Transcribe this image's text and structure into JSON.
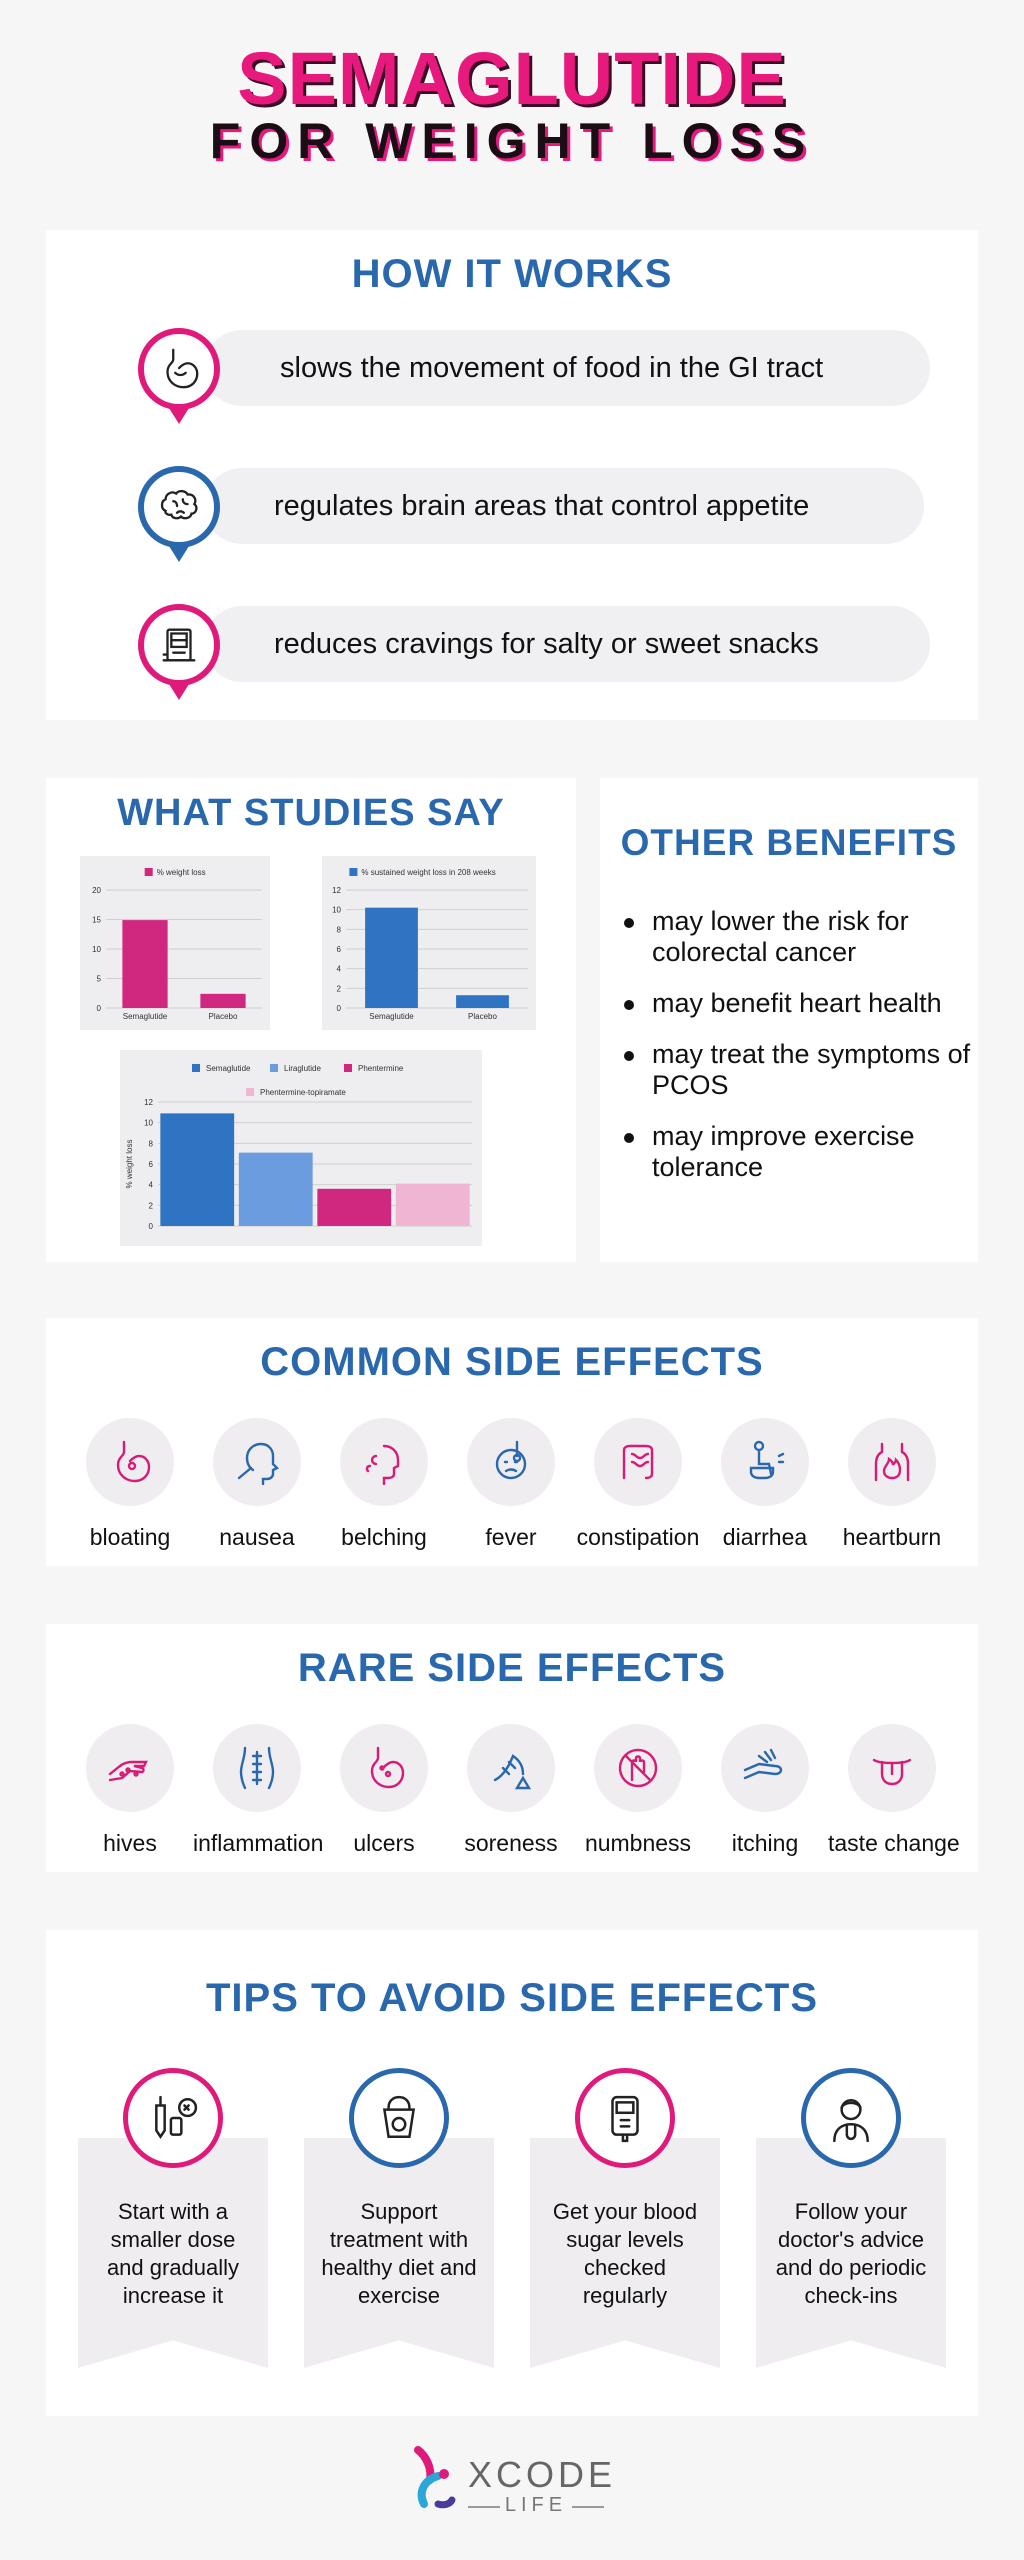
{
  "header": {
    "title": "SEMAGLUTIDE",
    "subtitle": "FOR WEIGHT LOSS"
  },
  "how_it_works": {
    "title": "HOW IT WORKS",
    "items": [
      {
        "text": "slows the movement of food in the GI tract",
        "icon": "stomach-icon",
        "color": "#e01a7b"
      },
      {
        "text": "regulates brain areas that control appetite",
        "icon": "brain-icon",
        "color": "#2a68ae"
      },
      {
        "text": "reduces cravings for salty or sweet snacks",
        "icon": "vending-machine-icon",
        "color": "#e01a7b"
      }
    ]
  },
  "studies": {
    "title": "WHAT STUDIES SAY"
  },
  "chart_data": [
    {
      "type": "bar",
      "categories": [
        "Semaglutide",
        "Placebo"
      ],
      "series": [
        {
          "name": "% weight loss",
          "values": [
            14.9,
            2.4
          ],
          "color": "#d0287e"
        }
      ],
      "ylim": [
        0,
        20
      ],
      "yticks": [
        "0",
        "5",
        "10",
        "15",
        "20"
      ],
      "legend": "top-center",
      "grid": true
    },
    {
      "type": "bar",
      "categories": [
        "Semaglutide",
        "Placebo"
      ],
      "series": [
        {
          "name": "% sustained weight loss in 208 weeks",
          "values": [
            10.2,
            1.3
          ],
          "color": "#2f74c3"
        }
      ],
      "ylim": [
        0,
        12
      ],
      "yticks": [
        "0",
        "2",
        "4",
        "6",
        "8",
        "10",
        "12"
      ],
      "legend": "top-center",
      "grid": true
    },
    {
      "type": "bar",
      "categories": [
        ""
      ],
      "series": [
        {
          "name": "Semaglutide",
          "values": [
            10.9
          ],
          "color": "#2f74c3"
        },
        {
          "name": "Liraglutide",
          "values": [
            7.1
          ],
          "color": "#6b9ce0"
        },
        {
          "name": "Phentermine",
          "values": [
            3.6
          ],
          "color": "#d0287e"
        },
        {
          "name": "Phentermine-topiramate",
          "values": [
            4.1
          ],
          "color": "#f0b5d2"
        }
      ],
      "ylabel": "% weight loss",
      "ylim": [
        0,
        12
      ],
      "yticks": [
        "0",
        "2",
        "4",
        "6",
        "8",
        "10",
        "12"
      ],
      "legend": "top-center",
      "grid": true
    }
  ],
  "other_benefits": {
    "title": "OTHER BENEFITS",
    "items": [
      "may lower the risk for colorectal cancer",
      "may benefit heart health",
      "may treat the symptoms of PCOS",
      "may improve exercise tolerance"
    ]
  },
  "common_side_effects": {
    "title": "COMMON SIDE EFFECTS",
    "items": [
      {
        "label": "bloating",
        "icon": "bloating-icon"
      },
      {
        "label": "nausea",
        "icon": "nausea-icon"
      },
      {
        "label": "belching",
        "icon": "belching-icon"
      },
      {
        "label": "fever",
        "icon": "fever-icon"
      },
      {
        "label": "constipation",
        "icon": "intestine-icon"
      },
      {
        "label": "diarrhea",
        "icon": "toilet-icon"
      },
      {
        "label": "heartburn",
        "icon": "heartburn-icon"
      }
    ]
  },
  "rare_side_effects": {
    "title": "RARE SIDE EFFECTS",
    "items": [
      {
        "label": "hives",
        "icon": "hives-icon"
      },
      {
        "label": "inflammation",
        "icon": "spine-icon"
      },
      {
        "label": "ulcers",
        "icon": "stomach-ulcer-icon"
      },
      {
        "label": "soreness",
        "icon": "muscle-icon"
      },
      {
        "label": "numbness",
        "icon": "numb-hand-icon"
      },
      {
        "label": "itching",
        "icon": "itching-icon"
      },
      {
        "label": "taste change",
        "icon": "tongue-icon"
      }
    ]
  },
  "tips": {
    "title": "TIPS TO AVOID SIDE EFFECTS",
    "items": [
      {
        "text": "Start with a smaller dose and gradually increase it",
        "icon": "syringe-icon",
        "color": "#e01a7b"
      },
      {
        "text": "Support treatment with healthy diet and exercise",
        "icon": "diet-exercise-icon",
        "color": "#2a68ae"
      },
      {
        "text": "Get your blood sugar levels checked regularly",
        "icon": "glucometer-icon",
        "color": "#e01a7b"
      },
      {
        "text": "Follow your doctor's advice and do periodic check-ins",
        "icon": "doctor-icon",
        "color": "#2a68ae"
      }
    ]
  },
  "logo": {
    "name": "XCODE",
    "sub": "LIFE"
  }
}
